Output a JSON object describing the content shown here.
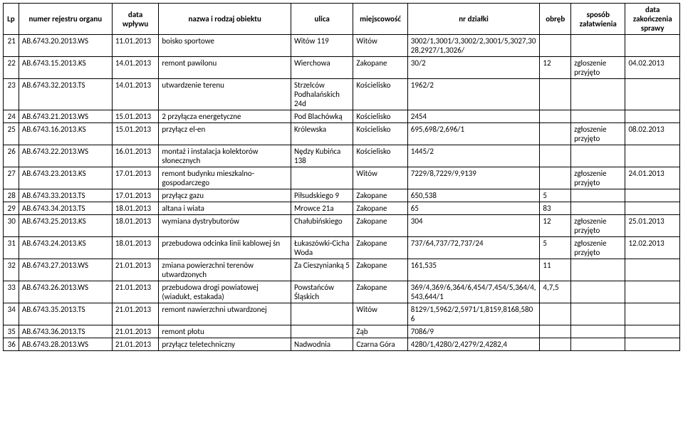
{
  "columns": [
    "Lp",
    "numer rejestru organu",
    "data wpływu",
    "nazwa i rodzaj obiektu",
    "ulica",
    "miejscowość",
    "nr działki",
    "obręb",
    "sposób załatwienia",
    "data zakończenia sprawy"
  ],
  "rows": [
    {
      "lp": "21",
      "nr": "AB.6743.20.2013.WS",
      "d1": "11.01.2013",
      "nazwa": "boisko sportowe",
      "ulica": "Witów 119",
      "miejsc": "Witów",
      "dzialka": "3002/1,3001/3,3002/2,3001/5,3027,3028,2927/1,3026/",
      "obreb": "",
      "sposob": "",
      "d2": ""
    },
    {
      "lp": "22",
      "nr": "AB.6743.15.2013.KS",
      "d1": "14.01.2013",
      "nazwa": "remont pawilonu",
      "ulica": "Wierchowa",
      "miejsc": "Zakopane",
      "dzialka": "30/2",
      "obreb": "12",
      "sposob": "zgloszenie przyjęto",
      "d2": "04.02.2013"
    },
    {
      "lp": "23",
      "nr": "AB.6743.32.2013.TS",
      "d1": "14.01.2013",
      "nazwa": "utwardzenie terenu",
      "ulica": "Strzelców Podhalańskich 24d",
      "miejsc": "Kościelisko",
      "dzialka": "1962/2",
      "obreb": "",
      "sposob": "",
      "d2": ""
    },
    {
      "lp": "24",
      "nr": "AB.6743.21.2013.WS",
      "d1": "15.01.2013",
      "nazwa": "2 przyłącza energetyczne",
      "ulica": "Pod Blachówką",
      "miejsc": "Kościelisko",
      "dzialka": "2454",
      "obreb": "",
      "sposob": "",
      "d2": ""
    },
    {
      "lp": "25",
      "nr": "AB.6743.16.2013.KS",
      "d1": "15.01.2013",
      "nazwa": "przyłącz el-en",
      "ulica": "Królewska",
      "miejsc": "Kościelisko",
      "dzialka": "695,698/2,696/1",
      "obreb": "",
      "sposob": "zgłoszenie przyjęto",
      "d2": "08.02.2013"
    },
    {
      "lp": "26",
      "nr": "AB.6743.22.2013.WS",
      "d1": "16.01.2013",
      "nazwa": "montaż i instalacja kolektorów słonecznych",
      "ulica": "Nędzy Kubińca 138",
      "miejsc": "Kościelisko",
      "dzialka": "1445/2",
      "obreb": "",
      "sposob": "",
      "d2": ""
    },
    {
      "lp": "27",
      "nr": "AB.6743.23.2013.KS",
      "d1": "17.01.2013",
      "nazwa": "remont budynku mieszkalno-gospodarczego",
      "ulica": "",
      "miejsc": "Witów",
      "dzialka": "7229/8,7229/9,9139",
      "obreb": "",
      "sposob": "zgłoszenie przyjęto",
      "d2": "24.01.2013"
    },
    {
      "lp": "28",
      "nr": "AB.6743.33.2013.TS",
      "d1": "17.01.2013",
      "nazwa": "przyłącz gazu",
      "ulica": "Piłsudskiego 9",
      "miejsc": "Zakopane",
      "dzialka": "650,538",
      "obreb": "5",
      "sposob": "",
      "d2": ""
    },
    {
      "lp": "29",
      "nr": "AB.6743.34.2013.TS",
      "d1": "18.01.2013",
      "nazwa": "altana i wiata",
      "ulica": "Mrowce 21a",
      "miejsc": "Zakopane",
      "dzialka": "65",
      "obreb": "83",
      "sposob": "",
      "d2": ""
    },
    {
      "lp": "30",
      "nr": "AB.6743.25.2013.KS",
      "d1": "18.01.2013",
      "nazwa": "wymiana dystrybutorów",
      "ulica": "Chałubińskiego",
      "miejsc": "Zakopane",
      "dzialka": "304",
      "obreb": "12",
      "sposob": "zgłoszenie przyjęto",
      "d2": "25.01.2013"
    },
    {
      "lp": "31",
      "nr": "AB.6743.24.2013.KS",
      "d1": "18.01.2013",
      "nazwa": "przebudowa odcinka linii kablowej śn",
      "ulica": "Łukaszówki-Cicha Woda",
      "miejsc": "Zakopane",
      "dzialka": "737/64,737/72,737/24",
      "obreb": "5",
      "sposob": "zgłoszenie przyjęto",
      "d2": "12.02.2013"
    },
    {
      "lp": "32",
      "nr": "AB.6743.27.2013.WS",
      "d1": "21.01.2013",
      "nazwa": "zmiana powierzchni terenów utwardzonych",
      "ulica": "Za Cieszynianką 5",
      "miejsc": "Zakopane",
      "dzialka": "161,535",
      "obreb": "11",
      "sposob": "",
      "d2": ""
    },
    {
      "lp": "33",
      "nr": "AB.6743.26.2013.WS",
      "d1": "21.01.2013",
      "nazwa": "przebudowa drogi powiatowej (wiadukt, estakada)",
      "ulica": "Powstańców Śląskich",
      "miejsc": "Zakopane",
      "dzialka": "369/4,369/6,364/6,454/7,454/5,364/4,543,644/1",
      "obreb": "4,7,5",
      "sposob": "",
      "d2": ""
    },
    {
      "lp": "34",
      "nr": "AB.6743.35.2013.TS",
      "d1": "21.01.2013",
      "nazwa": "remont nawierzchni utwardzonej",
      "ulica": "",
      "miejsc": "Witów",
      "dzialka": "8129/1,5962/2,5971/1,8159,8168,5806",
      "obreb": "",
      "sposob": "",
      "d2": ""
    },
    {
      "lp": "35",
      "nr": "AB.6743.36.2013.TS",
      "d1": "21.01.2013",
      "nazwa": "remont płotu",
      "ulica": "",
      "miejsc": "Ząb",
      "dzialka": "7086/9",
      "obreb": "",
      "sposob": "",
      "d2": ""
    },
    {
      "lp": "36",
      "nr": "AB.6743.28.2013.WS",
      "d1": "21.01.2013",
      "nazwa": "przyłącz teletechniczny",
      "ulica": "Nadwodnia",
      "miejsc": "Czarna Góra",
      "dzialka": "4280/1,4280/2,4279/2,4282,4",
      "obreb": "",
      "sposob": "",
      "d2": ""
    }
  ]
}
